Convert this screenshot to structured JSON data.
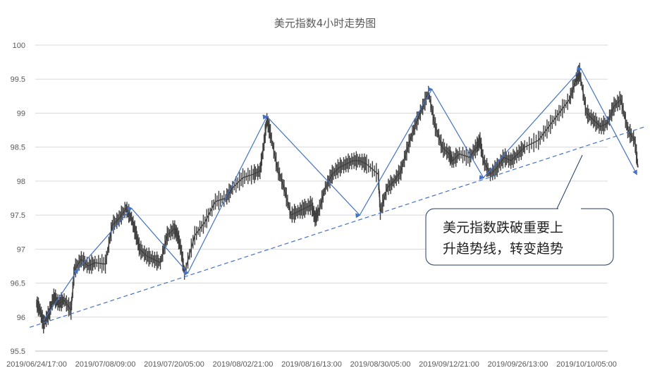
{
  "chart_data": {
    "type": "line",
    "title": "美元指数4小时走势图",
    "xlabel": "",
    "ylabel": "",
    "ylim": [
      95.5,
      100
    ],
    "grid": true,
    "y_ticks": [
      "95.5",
      "96",
      "96.5",
      "97",
      "97.5",
      "98",
      "98.5",
      "99",
      "99.5",
      "100"
    ],
    "x_ticks": [
      "2019/06/24/17:00",
      "2019/07/08/09:00",
      "2019/07/20/05:00",
      "2019/08/02/21:00",
      "2019/08/16/13:00",
      "2019/08/30/05:00",
      "2019/09/12/21:00",
      "2019/09/26/13:00",
      "2019/10/10/05:00"
    ],
    "series": [
      {
        "color": "#404040",
        "points": [
          [
            0,
            96.2
          ],
          [
            0.05,
            96.1
          ],
          [
            0.1,
            95.9
          ],
          [
            0.18,
            96.05
          ],
          [
            0.25,
            96.3
          ],
          [
            0.32,
            96.2
          ],
          [
            0.4,
            96.25
          ],
          [
            0.5,
            96.1
          ],
          [
            0.55,
            96.7
          ],
          [
            0.65,
            96.85
          ],
          [
            0.75,
            96.75
          ],
          [
            0.85,
            96.8
          ],
          [
            1.0,
            96.78
          ],
          [
            1.1,
            97.35
          ],
          [
            1.2,
            97.45
          ],
          [
            1.3,
            97.6
          ],
          [
            1.38,
            97.45
          ],
          [
            1.45,
            97.2
          ],
          [
            1.5,
            97.0
          ],
          [
            1.6,
            96.9
          ],
          [
            1.7,
            96.85
          ],
          [
            1.8,
            96.8
          ],
          [
            1.9,
            97.2
          ],
          [
            2.0,
            97.3
          ],
          [
            2.05,
            97.2
          ],
          [
            2.1,
            97.0
          ],
          [
            2.15,
            96.65
          ],
          [
            2.3,
            97.2
          ],
          [
            2.45,
            97.4
          ],
          [
            2.6,
            97.7
          ],
          [
            2.75,
            97.75
          ],
          [
            2.85,
            97.9
          ],
          [
            3.0,
            98.05
          ],
          [
            3.15,
            98.1
          ],
          [
            3.25,
            98.15
          ],
          [
            3.3,
            98.5
          ],
          [
            3.35,
            98.9
          ],
          [
            3.4,
            98.7
          ],
          [
            3.5,
            98.2
          ],
          [
            3.6,
            97.9
          ],
          [
            3.7,
            97.5
          ],
          [
            3.8,
            97.55
          ],
          [
            3.9,
            97.6
          ],
          [
            4.0,
            97.65
          ],
          [
            4.05,
            97.45
          ],
          [
            4.1,
            97.55
          ],
          [
            4.2,
            97.9
          ],
          [
            4.3,
            98.1
          ],
          [
            4.4,
            98.2
          ],
          [
            4.5,
            98.25
          ],
          [
            4.6,
            98.3
          ],
          [
            4.7,
            98.3
          ],
          [
            4.8,
            98.25
          ],
          [
            4.97,
            98.1
          ],
          [
            5.0,
            97.55
          ],
          [
            5.1,
            97.9
          ],
          [
            5.2,
            98.0
          ],
          [
            5.3,
            98.15
          ],
          [
            5.4,
            98.5
          ],
          [
            5.5,
            98.8
          ],
          [
            5.6,
            99.05
          ],
          [
            5.7,
            99.3
          ],
          [
            5.8,
            98.8
          ],
          [
            5.9,
            98.5
          ],
          [
            6.0,
            98.4
          ],
          [
            6.05,
            98.3
          ],
          [
            6.15,
            98.4
          ],
          [
            6.3,
            98.35
          ],
          [
            6.4,
            98.5
          ],
          [
            6.45,
            98.6
          ],
          [
            6.5,
            98.3
          ],
          [
            6.6,
            98.1
          ],
          [
            6.7,
            98.2
          ],
          [
            6.8,
            98.35
          ],
          [
            6.9,
            98.3
          ],
          [
            7.0,
            98.4
          ],
          [
            7.1,
            98.5
          ],
          [
            7.3,
            98.6
          ],
          [
            7.45,
            98.8
          ],
          [
            7.6,
            99.0
          ],
          [
            7.75,
            99.2
          ],
          [
            7.85,
            99.5
          ],
          [
            7.9,
            99.6
          ],
          [
            8.0,
            99.0
          ],
          [
            8.1,
            98.9
          ],
          [
            8.2,
            98.8
          ],
          [
            8.3,
            98.85
          ],
          [
            8.4,
            99.1
          ],
          [
            8.5,
            99.2
          ],
          [
            8.6,
            98.75
          ],
          [
            8.7,
            98.6
          ],
          [
            8.75,
            98.2
          ]
        ]
      },
      {
        "color": "#4472C4",
        "points": [
          [
            0.1,
            95.95
          ],
          [
            0.6,
            96.7
          ],
          [
            1.38,
            97.6
          ],
          [
            2.2,
            96.65
          ],
          [
            3.35,
            98.95
          ],
          [
            4.7,
            97.5
          ],
          [
            5.75,
            99.35
          ],
          [
            6.5,
            98.05
          ],
          [
            7.92,
            99.65
          ],
          [
            8.73,
            98.1
          ]
        ]
      },
      {
        "color": "#4472C4",
        "dashed": true,
        "points": [
          [
            -0.1,
            95.85
          ],
          [
            8.85,
            98.8
          ]
        ]
      }
    ],
    "annotations": [
      {
        "text": "美元指数跌破重要上升趋势线，转变趋势",
        "lines": [
          "美元指数跌破重要上",
          "升趋势线，转变趋势"
        ]
      }
    ]
  }
}
